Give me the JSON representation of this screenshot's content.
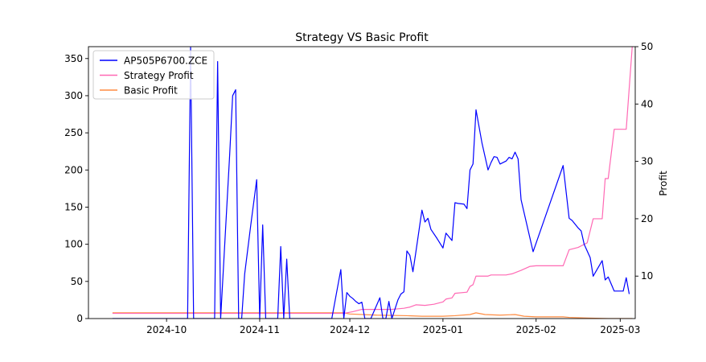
{
  "chart_data": {
    "type": "line",
    "title": "Strategy VS Basic Profit",
    "xlabel": "",
    "ylabel": "",
    "y2label": "Profit",
    "xlim": [
      "2024-09-05",
      "2025-03-06"
    ],
    "ylim": [
      0,
      366
    ],
    "y2lim": [
      2.6,
      50
    ],
    "x_ticks": [
      "2024-10-01",
      "2024-11-01",
      "2024-12-01",
      "2025-01-01",
      "2025-02-01",
      "2025-03-01"
    ],
    "x_tick_labels": [
      "2024-10",
      "2024-11",
      "2024-12",
      "2025-01",
      "2025-02",
      "2025-03"
    ],
    "y_ticks": [
      0,
      50,
      100,
      150,
      200,
      250,
      300,
      350
    ],
    "y2_ticks": [
      10,
      20,
      30,
      40,
      50
    ],
    "grid": false,
    "legend": "top-left",
    "colors": {
      "AP505P6700.ZCE": "#0000ff",
      "Strategy Profit": "#ff69b4",
      "Basic Profit": "#ff8c42"
    },
    "series": [
      {
        "name": "AP505P6700.ZCE",
        "axis": "left",
        "points": [
          [
            "2024-09-13",
            0
          ],
          [
            "2024-09-20",
            0
          ],
          [
            "2024-09-27",
            0
          ],
          [
            "2024-10-04",
            0
          ],
          [
            "2024-10-08",
            0
          ],
          [
            "2024-10-09",
            365
          ],
          [
            "2024-10-10",
            0
          ],
          [
            "2024-10-15",
            0
          ],
          [
            "2024-10-17",
            0
          ],
          [
            "2024-10-18",
            346
          ],
          [
            "2024-10-19",
            0
          ],
          [
            "2024-10-22",
            220
          ],
          [
            "2024-10-23",
            300
          ],
          [
            "2024-10-24",
            308
          ],
          [
            "2024-10-25",
            0
          ],
          [
            "2024-10-26",
            0
          ],
          [
            "2024-10-27",
            60
          ],
          [
            "2024-10-29",
            125
          ],
          [
            "2024-10-31",
            187
          ],
          [
            "2024-11-01",
            0
          ],
          [
            "2024-11-02",
            126
          ],
          [
            "2024-11-03",
            0
          ],
          [
            "2024-11-06",
            0
          ],
          [
            "2024-11-07",
            0
          ],
          [
            "2024-11-08",
            97
          ],
          [
            "2024-11-09",
            0
          ],
          [
            "2024-11-10",
            80
          ],
          [
            "2024-11-11",
            0
          ],
          [
            "2024-11-15",
            0
          ],
          [
            "2024-11-22",
            0
          ],
          [
            "2024-11-25",
            0
          ],
          [
            "2024-11-28",
            66
          ],
          [
            "2024-11-29",
            0
          ],
          [
            "2024-11-30",
            35
          ],
          [
            "2024-12-01",
            30
          ],
          [
            "2024-12-02",
            27
          ],
          [
            "2024-12-03",
            23
          ],
          [
            "2024-12-04",
            20
          ],
          [
            "2024-12-05",
            22
          ],
          [
            "2024-12-06",
            0
          ],
          [
            "2024-12-08",
            0
          ],
          [
            "2024-12-11",
            28
          ],
          [
            "2024-12-12",
            0
          ],
          [
            "2024-12-13",
            0
          ],
          [
            "2024-12-14",
            23
          ],
          [
            "2024-12-15",
            0
          ],
          [
            "2024-12-17",
            25
          ],
          [
            "2024-12-18",
            33
          ],
          [
            "2024-12-19",
            36
          ],
          [
            "2024-12-20",
            91
          ],
          [
            "2024-12-21",
            85
          ],
          [
            "2024-12-22",
            63
          ],
          [
            "2024-12-23",
            90
          ],
          [
            "2024-12-24",
            118
          ],
          [
            "2024-12-25",
            146
          ],
          [
            "2024-12-26",
            130
          ],
          [
            "2024-12-27",
            135
          ],
          [
            "2024-12-28",
            120
          ],
          [
            "2024-12-30",
            108
          ],
          [
            "2025-01-01",
            95
          ],
          [
            "2025-01-02",
            115
          ],
          [
            "2025-01-04",
            105
          ],
          [
            "2025-01-05",
            156
          ],
          [
            "2025-01-06",
            155
          ],
          [
            "2025-01-08",
            154
          ],
          [
            "2025-01-09",
            148
          ],
          [
            "2025-01-10",
            200
          ],
          [
            "2025-01-11",
            208
          ],
          [
            "2025-01-12",
            281
          ],
          [
            "2025-01-14",
            236
          ],
          [
            "2025-01-16",
            200
          ],
          [
            "2025-01-17",
            210
          ],
          [
            "2025-01-18",
            218
          ],
          [
            "2025-01-19",
            217
          ],
          [
            "2025-01-20",
            208
          ],
          [
            "2025-01-22",
            212
          ],
          [
            "2025-01-23",
            217
          ],
          [
            "2025-01-24",
            215
          ],
          [
            "2025-01-25",
            224
          ],
          [
            "2025-01-26",
            215
          ],
          [
            "2025-01-27",
            160
          ],
          [
            "2025-01-31",
            90
          ],
          [
            "2025-02-10",
            206
          ],
          [
            "2025-02-12",
            135
          ],
          [
            "2025-02-13",
            132
          ],
          [
            "2025-02-15",
            122
          ],
          [
            "2025-02-16",
            118
          ],
          [
            "2025-02-17",
            100
          ],
          [
            "2025-02-19",
            82
          ],
          [
            "2025-02-20",
            57
          ],
          [
            "2025-02-23",
            78
          ],
          [
            "2025-02-24",
            52
          ],
          [
            "2025-02-25",
            56
          ],
          [
            "2025-02-27",
            37
          ],
          [
            "2025-03-02",
            37
          ],
          [
            "2025-03-03",
            55
          ],
          [
            "2025-03-04",
            33
          ]
        ]
      },
      {
        "name": "Strategy Profit",
        "axis": "right",
        "points": [
          [
            "2024-09-13",
            3.5
          ],
          [
            "2024-11-29",
            3.5
          ],
          [
            "2024-12-02",
            3.8
          ],
          [
            "2024-12-05",
            4.2
          ],
          [
            "2024-12-10",
            4.2
          ],
          [
            "2024-12-15",
            4.2
          ],
          [
            "2024-12-19",
            4.4
          ],
          [
            "2024-12-21",
            4.6
          ],
          [
            "2024-12-23",
            5.0
          ],
          [
            "2024-12-26",
            4.9
          ],
          [
            "2024-12-29",
            5.1
          ],
          [
            "2025-01-01",
            5.5
          ],
          [
            "2025-01-02",
            6.0
          ],
          [
            "2025-01-04",
            6.2
          ],
          [
            "2025-01-05",
            7.0
          ],
          [
            "2025-01-09",
            7.2
          ],
          [
            "2025-01-10",
            8.2
          ],
          [
            "2025-01-11",
            8.5
          ],
          [
            "2025-01-12",
            10.0
          ],
          [
            "2025-01-16",
            10.0
          ],
          [
            "2025-01-17",
            10.2
          ],
          [
            "2025-01-20",
            10.2
          ],
          [
            "2025-01-22",
            10.2
          ],
          [
            "2025-01-24",
            10.4
          ],
          [
            "2025-01-27",
            11.0
          ],
          [
            "2025-01-30",
            11.7
          ],
          [
            "2025-02-01",
            11.8
          ],
          [
            "2025-02-10",
            11.8
          ],
          [
            "2025-02-12",
            14.6
          ],
          [
            "2025-02-15",
            15.0
          ],
          [
            "2025-02-18",
            15.8
          ],
          [
            "2025-02-20",
            20.0
          ],
          [
            "2025-02-23",
            20.0
          ],
          [
            "2025-02-24",
            27.0
          ],
          [
            "2025-02-25",
            27.0
          ],
          [
            "2025-02-27",
            35.6
          ],
          [
            "2025-03-03",
            35.6
          ],
          [
            "2025-03-05",
            50.0
          ]
        ]
      },
      {
        "name": "Basic Profit",
        "axis": "right",
        "points": [
          [
            "2024-09-13",
            3.6
          ],
          [
            "2024-11-29",
            3.6
          ],
          [
            "2024-12-01",
            3.4
          ],
          [
            "2024-12-10",
            3.2
          ],
          [
            "2024-12-20",
            3.1
          ],
          [
            "2024-12-25",
            3.0
          ],
          [
            "2025-01-01",
            3.0
          ],
          [
            "2025-01-05",
            3.1
          ],
          [
            "2025-01-10",
            3.3
          ],
          [
            "2025-01-12",
            3.6
          ],
          [
            "2025-01-15",
            3.3
          ],
          [
            "2025-01-20",
            3.2
          ],
          [
            "2025-01-25",
            3.3
          ],
          [
            "2025-01-28",
            3.0
          ],
          [
            "2025-02-01",
            2.9
          ],
          [
            "2025-02-10",
            2.9
          ],
          [
            "2025-02-12",
            2.8
          ],
          [
            "2025-02-18",
            2.7
          ],
          [
            "2025-02-25",
            2.6
          ],
          [
            "2025-03-05",
            2.6
          ]
        ]
      }
    ]
  }
}
